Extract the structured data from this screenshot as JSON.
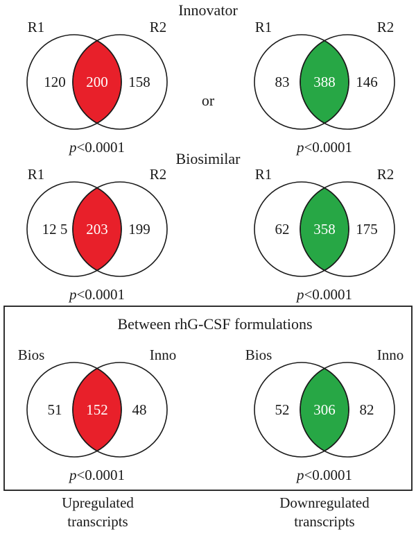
{
  "headings": {
    "innovator": "Innovator",
    "or": "or",
    "biosimilar": "Biosimilar",
    "between": "Between rhG-CSF formulations"
  },
  "colors": {
    "up": "#e8202a",
    "down": "#27a745"
  },
  "venns": [
    {
      "id": "innovator-up",
      "left_label": "R1",
      "right_label": "R2",
      "left_only": "120",
      "overlap": "200",
      "right_only": "158",
      "p_symbol": "p",
      "p_value": "<0.0001",
      "color_key": "up"
    },
    {
      "id": "innovator-down",
      "left_label": "R1",
      "right_label": "R2",
      "left_only": "83",
      "overlap": "388",
      "right_only": "146",
      "p_symbol": "p",
      "p_value": "<0.0001",
      "color_key": "down"
    },
    {
      "id": "biosimilar-up",
      "left_label": "R1",
      "right_label": "R2",
      "left_only": "12 5",
      "overlap": "203",
      "right_only": "199",
      "p_symbol": "p",
      "p_value": "<0.0001",
      "color_key": "up"
    },
    {
      "id": "biosimilar-down",
      "left_label": "R1",
      "right_label": "R2",
      "left_only": "62",
      "overlap": "358",
      "right_only": "175",
      "p_symbol": "p",
      "p_value": "<0.0001",
      "color_key": "down"
    },
    {
      "id": "between-up",
      "left_label": "Bios",
      "right_label": "Inno",
      "left_only": "51",
      "overlap": "152",
      "right_only": "48",
      "p_symbol": "p",
      "p_value": "<0.0001",
      "color_key": "up"
    },
    {
      "id": "between-down",
      "left_label": "Bios",
      "right_label": "Inno",
      "left_only": "52",
      "overlap": "306",
      "right_only": "82",
      "p_symbol": "p",
      "p_value": "<0.0001",
      "color_key": "down"
    }
  ],
  "footer": {
    "up_line1": "Upregulated",
    "up_line2": "transcripts",
    "down_line1": "Downregulated",
    "down_line2": "transcripts"
  }
}
